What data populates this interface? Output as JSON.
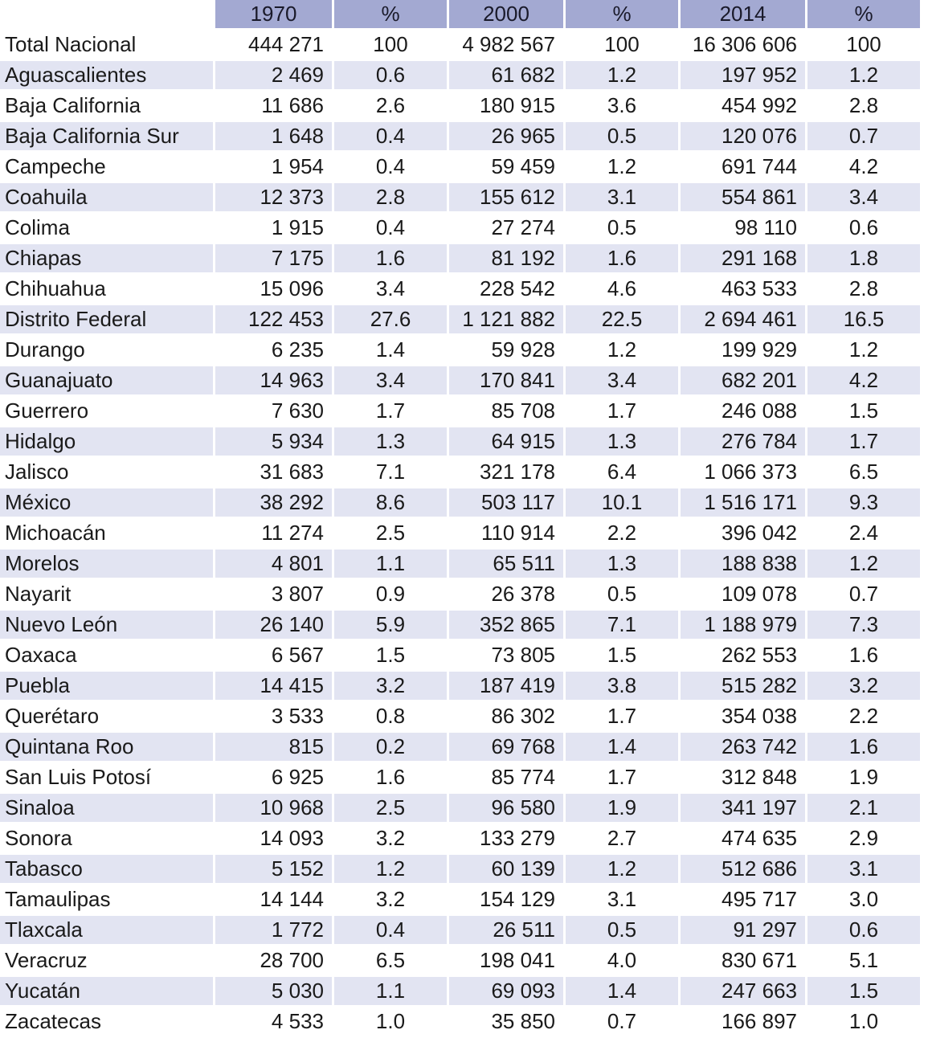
{
  "table": {
    "headers": [
      "",
      "1970",
      "%",
      "2000",
      "%",
      "2014",
      "%"
    ],
    "rows": [
      [
        "Total Nacional",
        "444 271",
        "100",
        "4 982 567",
        "100",
        "16 306 606",
        "100"
      ],
      [
        "Aguascalientes",
        "2 469",
        "0.6",
        "61 682",
        "1.2",
        "197 952",
        "1.2"
      ],
      [
        "Baja California",
        "11 686",
        "2.6",
        "180 915",
        "3.6",
        "454 992",
        "2.8"
      ],
      [
        "Baja California Sur",
        "1 648",
        "0.4",
        "26 965",
        "0.5",
        "120 076",
        "0.7"
      ],
      [
        "Campeche",
        "1 954",
        "0.4",
        "59 459",
        "1.2",
        "691 744",
        "4.2"
      ],
      [
        "Coahuila",
        "12 373",
        "2.8",
        "155 612",
        "3.1",
        "554 861",
        "3.4"
      ],
      [
        "Colima",
        "1 915",
        "0.4",
        "27 274",
        "0.5",
        "98 110",
        "0.6"
      ],
      [
        "Chiapas",
        "7 175",
        "1.6",
        "81 192",
        "1.6",
        "291 168",
        "1.8"
      ],
      [
        "Chihuahua",
        "15 096",
        "3.4",
        "228 542",
        "4.6",
        "463 533",
        "2.8"
      ],
      [
        "Distrito Federal",
        "122 453",
        "27.6",
        "1 121 882",
        "22.5",
        "2 694 461",
        "16.5"
      ],
      [
        "Durango",
        "6 235",
        "1.4",
        "59 928",
        "1.2",
        "199 929",
        "1.2"
      ],
      [
        "Guanajuato",
        "14 963",
        "3.4",
        "170 841",
        "3.4",
        "682 201",
        "4.2"
      ],
      [
        "Guerrero",
        "7 630",
        "1.7",
        "85 708",
        "1.7",
        "246 088",
        "1.5"
      ],
      [
        "Hidalgo",
        "5 934",
        "1.3",
        "64 915",
        "1.3",
        "276 784",
        "1.7"
      ],
      [
        "Jalisco",
        "31 683",
        "7.1",
        "321 178",
        "6.4",
        "1 066 373",
        "6.5"
      ],
      [
        "México",
        "38 292",
        "8.6",
        "503 117",
        "10.1",
        "1 516 171",
        "9.3"
      ],
      [
        "Michoacán",
        "11 274",
        "2.5",
        "110 914",
        "2.2",
        "396 042",
        "2.4"
      ],
      [
        "Morelos",
        "4 801",
        "1.1",
        "65 511",
        "1.3",
        "188 838",
        "1.2"
      ],
      [
        "Nayarit",
        "3 807",
        "0.9",
        "26 378",
        "0.5",
        "109 078",
        "0.7"
      ],
      [
        "Nuevo León",
        "26 140",
        "5.9",
        "352 865",
        "7.1",
        "1 188 979",
        "7.3"
      ],
      [
        "Oaxaca",
        "6 567",
        "1.5",
        "73 805",
        "1.5",
        "262 553",
        "1.6"
      ],
      [
        "Puebla",
        "14 415",
        "3.2",
        "187 419",
        "3.8",
        "515 282",
        "3.2"
      ],
      [
        "Querétaro",
        "3 533",
        "0.8",
        "86 302",
        "1.7",
        "354 038",
        "2.2"
      ],
      [
        "Quintana Roo",
        "815",
        "0.2",
        "69 768",
        "1.4",
        "263 742",
        "1.6"
      ],
      [
        "San Luis Potosí",
        "6 925",
        "1.6",
        "85 774",
        "1.7",
        "312 848",
        "1.9"
      ],
      [
        "Sinaloa",
        "10 968",
        "2.5",
        "96 580",
        "1.9",
        "341 197",
        "2.1"
      ],
      [
        "Sonora",
        "14 093",
        "3.2",
        "133 279",
        "2.7",
        "474 635",
        "2.9"
      ],
      [
        "Tabasco",
        "5 152",
        "1.2",
        "60 139",
        "1.2",
        "512 686",
        "3.1"
      ],
      [
        "Tamaulipas",
        "14 144",
        "3.2",
        "154 129",
        "3.1",
        "495 717",
        "3.0"
      ],
      [
        "Tlaxcala",
        "1 772",
        "0.4",
        "26 511",
        "0.5",
        "91 297",
        "0.6"
      ],
      [
        "Veracruz",
        "28 700",
        "6.5",
        "198 041",
        "4.0",
        "830 671",
        "5.1"
      ],
      [
        "Yucatán",
        "5 030",
        "1.1",
        "69 093",
        "1.4",
        "247 663",
        "1.5"
      ],
      [
        "Zacatecas",
        "4 533",
        "1.0",
        "35 850",
        "0.7",
        "166 897",
        "1.0"
      ]
    ]
  },
  "colors": {
    "header_bg": "#a3a9d2",
    "row_alt_bg": "#e2e4f2",
    "row_bg": "#ffffff"
  }
}
